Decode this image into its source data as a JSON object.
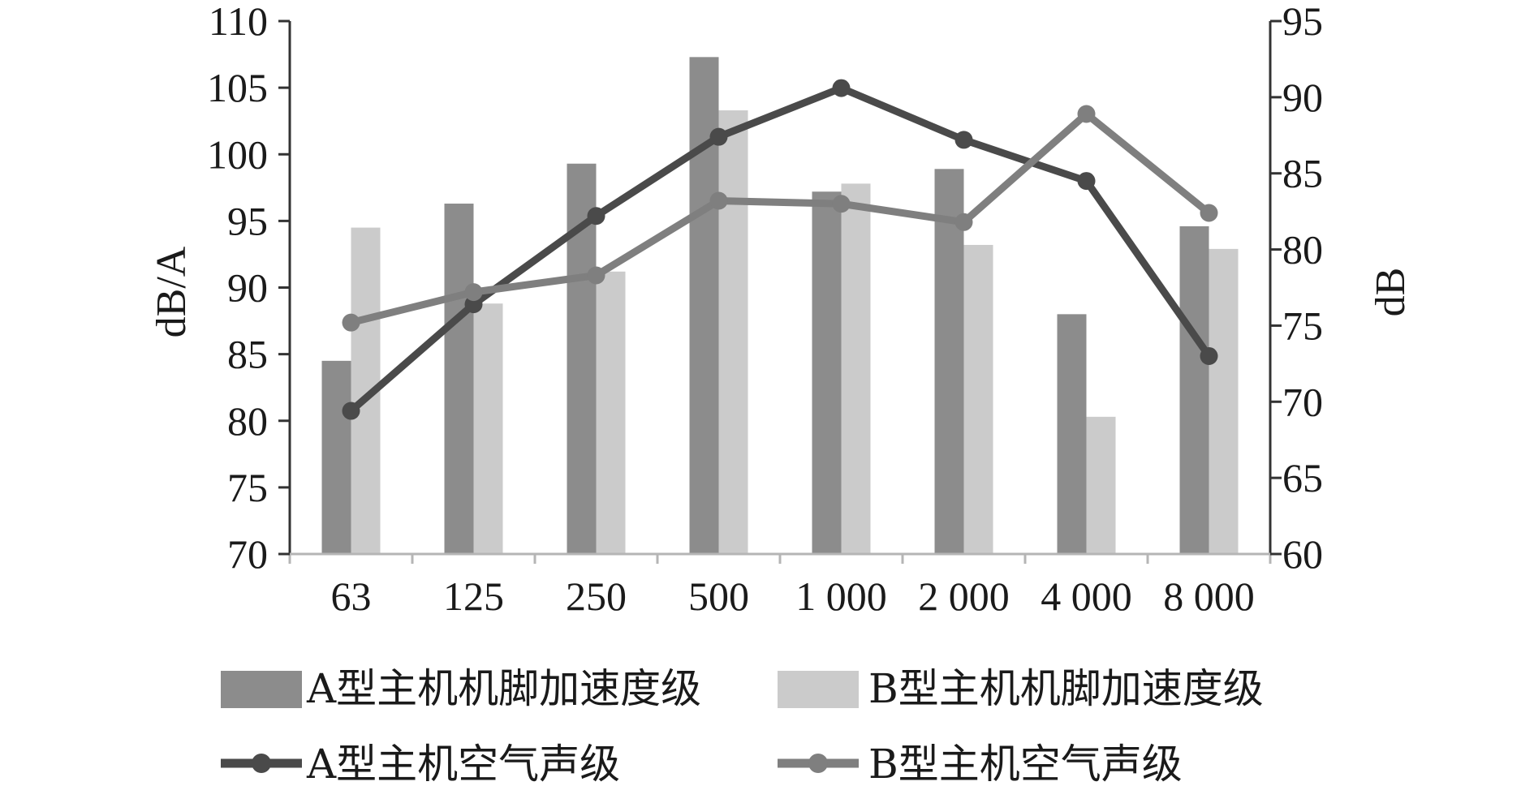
{
  "chart_data": {
    "type": "bar",
    "categories": [
      "63",
      "125",
      "250",
      "500",
      "1 000",
      "2 000",
      "4 000",
      "8 000"
    ],
    "y_left": {
      "label": "dB/A",
      "lim": [
        70,
        110
      ],
      "ticks": [
        "70",
        "75",
        "80",
        "85",
        "90",
        "95",
        "100",
        "105",
        "110"
      ]
    },
    "y_right": {
      "label": "dB",
      "lim": [
        60,
        95
      ],
      "ticks": [
        "60",
        "65",
        "70",
        "75",
        "80",
        "85",
        "90",
        "95"
      ]
    },
    "grid": false,
    "legend_position": "bottom",
    "series": [
      {
        "name": "A型主机机脚加速度级",
        "type": "bar",
        "axis": "left",
        "color": "#8c8c8c",
        "values": [
          84.5,
          96.3,
          99.3,
          107.3,
          97.2,
          98.9,
          88.0,
          94.6
        ]
      },
      {
        "name": "B型主机机脚加速度级",
        "type": "bar",
        "axis": "left",
        "color": "#cbcbcb",
        "values": [
          94.5,
          88.8,
          91.2,
          103.3,
          97.8,
          93.2,
          80.3,
          92.9
        ]
      },
      {
        "name": "A型主机空气声级",
        "type": "line",
        "axis": "right",
        "color": "#4a4a4a",
        "values": [
          69.4,
          76.4,
          82.2,
          87.4,
          90.6,
          87.2,
          84.5,
          73.0
        ]
      },
      {
        "name": "B型主机空气声级",
        "type": "line",
        "axis": "right",
        "color": "#7f7f7f",
        "values": [
          75.2,
          77.2,
          78.3,
          83.2,
          83.0,
          81.8,
          88.9,
          82.4
        ]
      }
    ]
  }
}
